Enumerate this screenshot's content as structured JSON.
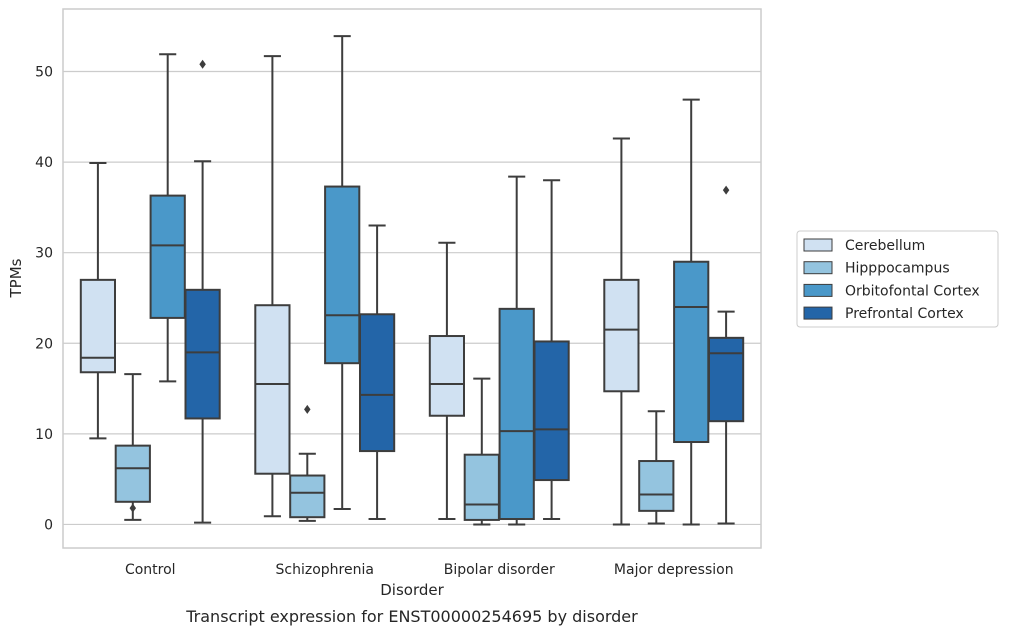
{
  "chart_data": {
    "type": "box",
    "caption": "Transcript expression for ENST00000254695 by disorder",
    "xlabel": "Disorder",
    "ylabel": "TPMs",
    "ylim": [
      -2.6,
      56.9
    ],
    "yticks": [
      0,
      10,
      20,
      30,
      40,
      50
    ],
    "grid": "horizontal",
    "legend_position": "right",
    "categories": [
      "Control",
      "Schizophrenia",
      "Bipolar disorder",
      "Major depression"
    ],
    "series": [
      {
        "name": "Cerebellum",
        "color": "#d0e1f2",
        "boxes": [
          {
            "whisker_low": 9.5,
            "q1": 16.8,
            "median": 18.4,
            "q3": 27.0,
            "whisker_high": 39.9,
            "outliers": []
          },
          {
            "whisker_low": 0.9,
            "q1": 5.6,
            "median": 15.5,
            "q3": 24.2,
            "whisker_high": 51.7,
            "outliers": []
          },
          {
            "whisker_low": 0.6,
            "q1": 12.0,
            "median": 15.5,
            "q3": 20.8,
            "whisker_high": 31.1,
            "outliers": []
          },
          {
            "whisker_low": 0.0,
            "q1": 14.7,
            "median": 21.5,
            "q3": 27.0,
            "whisker_high": 42.6,
            "outliers": []
          }
        ]
      },
      {
        "name": "Hipppocampus",
        "color": "#94c4df",
        "boxes": [
          {
            "whisker_low": 0.5,
            "q1": 2.5,
            "median": 6.2,
            "q3": 8.7,
            "whisker_high": 16.6,
            "outliers": [
              1.8
            ]
          },
          {
            "whisker_low": 0.4,
            "q1": 0.8,
            "median": 3.5,
            "q3": 5.4,
            "whisker_high": 7.8,
            "outliers": [
              12.7
            ]
          },
          {
            "whisker_low": 0.0,
            "q1": 0.5,
            "median": 2.2,
            "q3": 7.7,
            "whisker_high": 16.1,
            "outliers": []
          },
          {
            "whisker_low": 0.1,
            "q1": 1.5,
            "median": 3.3,
            "q3": 7.0,
            "whisker_high": 12.5,
            "outliers": []
          }
        ]
      },
      {
        "name": "Orbitofontal Cortex",
        "color": "#4a98c9",
        "boxes": [
          {
            "whisker_low": 15.8,
            "q1": 22.8,
            "median": 30.8,
            "q3": 36.3,
            "whisker_high": 51.9,
            "outliers": []
          },
          {
            "whisker_low": 1.7,
            "q1": 17.8,
            "median": 23.1,
            "q3": 37.3,
            "whisker_high": 53.9,
            "outliers": []
          },
          {
            "whisker_low": 0.0,
            "q1": 0.6,
            "median": 10.3,
            "q3": 23.8,
            "whisker_high": 38.4,
            "outliers": []
          },
          {
            "whisker_low": 0.0,
            "q1": 9.1,
            "median": 24.0,
            "q3": 29.0,
            "whisker_high": 46.9,
            "outliers": []
          }
        ]
      },
      {
        "name": "Prefrontal Cortex",
        "color": "#2365a8",
        "boxes": [
          {
            "whisker_low": 0.2,
            "q1": 11.7,
            "median": 19.0,
            "q3": 25.9,
            "whisker_high": 40.1,
            "outliers": [
              50.8
            ]
          },
          {
            "whisker_low": 0.6,
            "q1": 8.1,
            "median": 14.3,
            "q3": 23.2,
            "whisker_high": 33.0,
            "outliers": []
          },
          {
            "whisker_low": 0.6,
            "q1": 4.9,
            "median": 10.5,
            "q3": 20.2,
            "whisker_high": 38.0,
            "outliers": []
          },
          {
            "whisker_low": 0.1,
            "q1": 11.4,
            "median": 18.9,
            "q3": 20.6,
            "whisker_high": 23.5,
            "outliers": [
              36.9
            ]
          }
        ]
      }
    ]
  }
}
